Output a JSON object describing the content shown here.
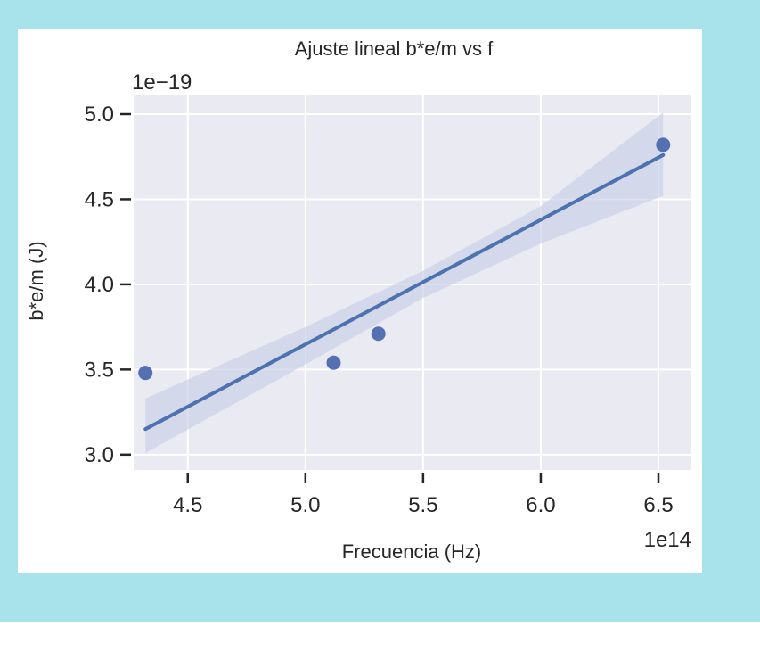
{
  "chart_data": {
    "type": "scatter",
    "title": "Ajuste lineal b*e/m vs f",
    "xlabel": "Frecuencia (Hz)",
    "ylabel": "b*e/m (J)",
    "x_offset_label": "1e14",
    "y_offset_label": "1e−19",
    "x_scale": 100000000000000.0,
    "y_scale": 1e-19,
    "xlim": [
      4.27,
      6.64
    ],
    "ylim": [
      2.91,
      5.11
    ],
    "x_ticks": [
      4.5,
      5.0,
      5.5,
      6.0,
      6.5
    ],
    "x_tick_labels": [
      "4.5",
      "5.0",
      "5.5",
      "6.0",
      "6.5"
    ],
    "y_ticks": [
      3.0,
      3.5,
      4.0,
      4.5,
      5.0
    ],
    "y_tick_labels": [
      "3.0",
      "3.5",
      "4.0",
      "4.5",
      "5.0"
    ],
    "grid": true,
    "colors": {
      "points": "#5470b3",
      "line": "#4c72b0",
      "band": "#c3cbe4",
      "plot_bg": "#eaeaf2"
    },
    "points": [
      {
        "x": 4.32,
        "y": 3.48
      },
      {
        "x": 5.12,
        "y": 3.54
      },
      {
        "x": 5.31,
        "y": 3.71
      },
      {
        "x": 6.52,
        "y": 4.82
      }
    ],
    "fit_line": {
      "x": [
        4.32,
        6.52
      ],
      "y": [
        3.15,
        4.76
      ]
    },
    "confidence_band": {
      "x": [
        4.32,
        5.0,
        5.5,
        6.0,
        6.52
      ],
      "lower": [
        3.01,
        3.53,
        3.92,
        4.24,
        4.52
      ],
      "upper": [
        3.33,
        3.75,
        4.08,
        4.46,
        5.01
      ]
    }
  }
}
